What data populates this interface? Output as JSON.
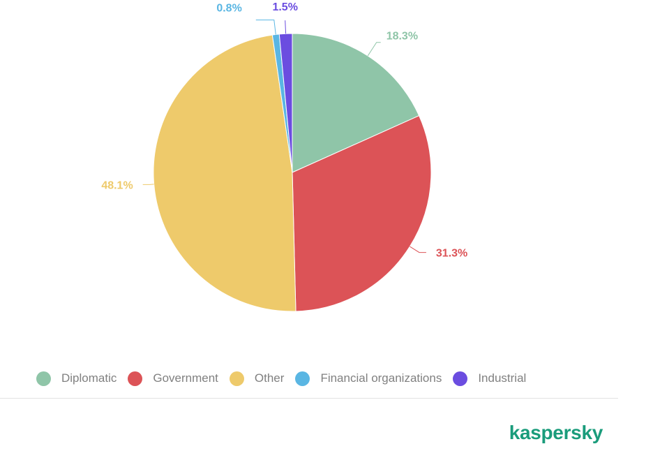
{
  "chart_data": {
    "type": "pie",
    "title": "",
    "start_angle_deg": 0,
    "direction": "clockwise",
    "slices": [
      {
        "name": "Diplomatic",
        "value": 18.3,
        "label": "18.3%",
        "color": "#8fc5a8"
      },
      {
        "name": "Government",
        "value": 31.3,
        "label": "31.3%",
        "color": "#dc5357"
      },
      {
        "name": "Other",
        "value": 48.1,
        "label": "48.1%",
        "color": "#eeca6b"
      },
      {
        "name": "Financial organizations",
        "value": 0.8,
        "label": "0.8%",
        "color": "#5ab6e3"
      },
      {
        "name": "Industrial",
        "value": 1.5,
        "label": "1.5%",
        "color": "#6b4de0"
      }
    ],
    "legend_placement": "bottom-left"
  },
  "brand": {
    "name": "kaspersky",
    "color": "#1a9c7b"
  }
}
